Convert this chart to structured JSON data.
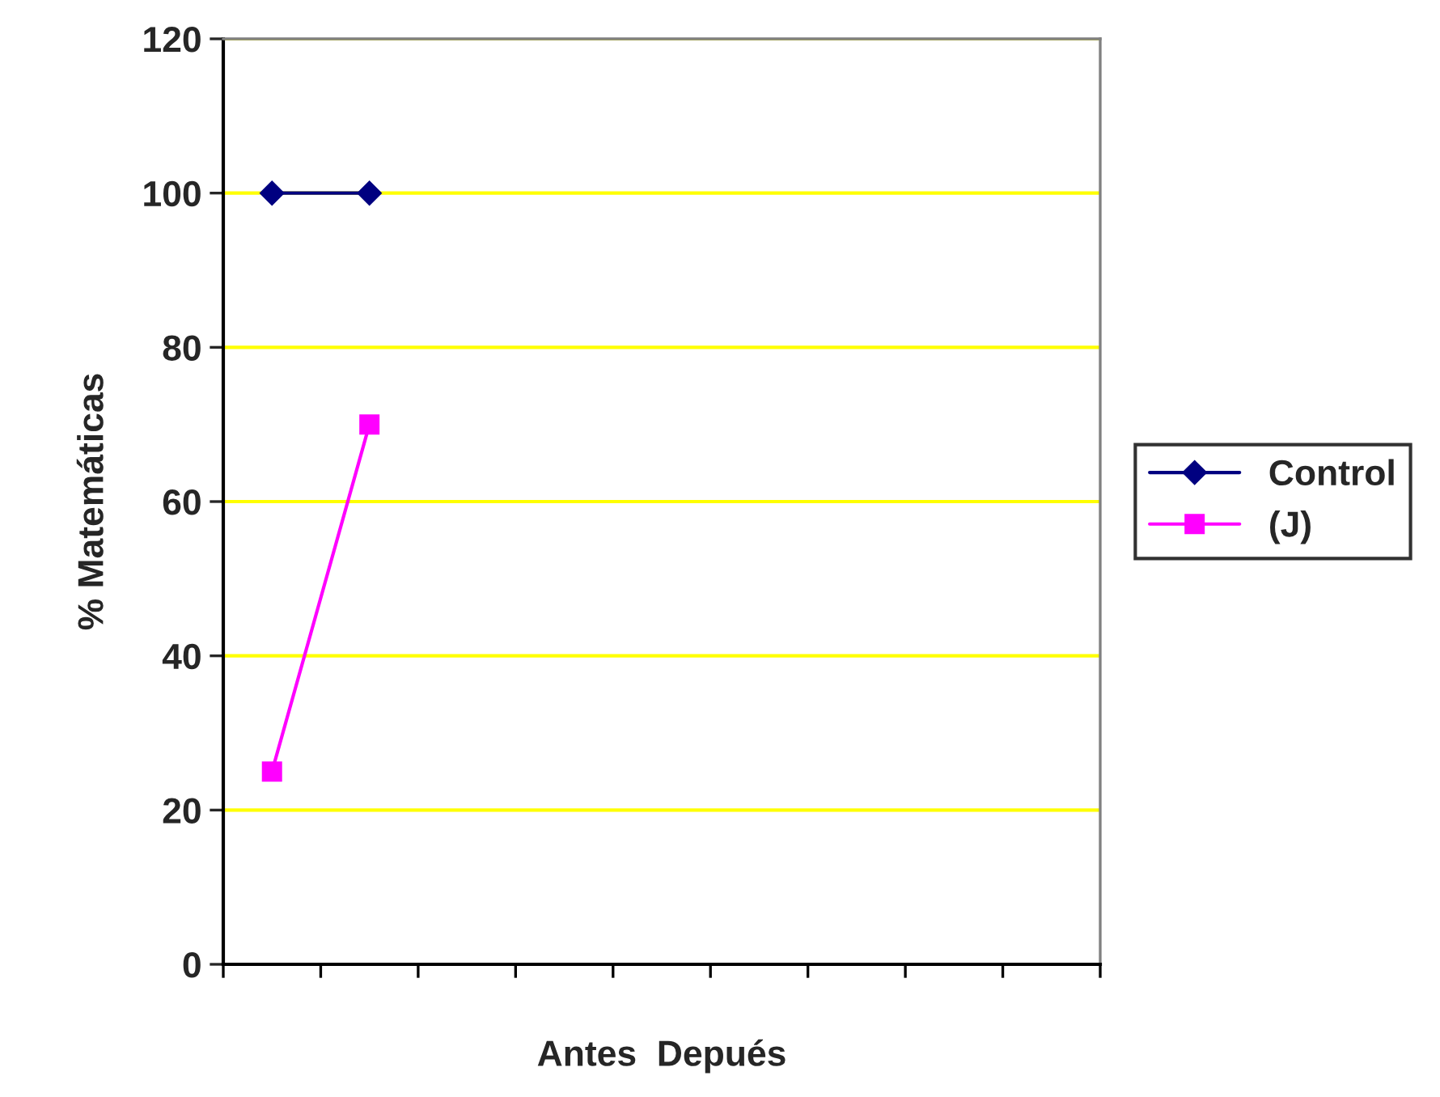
{
  "chart_data": {
    "type": "line",
    "xlabel": "Antes  Depués",
    "ylabel": "% Matemáticas",
    "categories": [
      null,
      null,
      null,
      null,
      null,
      null,
      null,
      null,
      null
    ],
    "series": [
      {
        "name": "Control",
        "color": "#000080",
        "marker": "diamond",
        "values": [
          100,
          100,
          null,
          null,
          null,
          null,
          null,
          null,
          null
        ]
      },
      {
        "name": "(J)",
        "color": "#ff00ff",
        "marker": "square",
        "values": [
          25,
          70,
          null,
          null,
          null,
          null,
          null,
          null,
          null
        ]
      }
    ],
    "ylim": [
      0,
      120
    ],
    "yticks": [
      0,
      20,
      40,
      60,
      80,
      100,
      120
    ],
    "grid": "y",
    "legend": "right",
    "line_style": "solid"
  }
}
